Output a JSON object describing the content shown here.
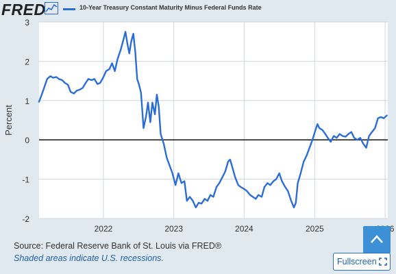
{
  "header": {
    "logo_text": "FRED",
    "logo_icon": "line-chart-icon",
    "legend_label": "10-Year Treasury Constant Maturity Minus Federal Funds Rate",
    "series_color": "#2b6dd6"
  },
  "footer": {
    "source": "Source: Federal Reserve Bank of St. Louis via FRED®",
    "recession_note": "Shaded areas indicate U.S. recessions.",
    "fullscreen_label": "Fullscreen",
    "fullscreen_icon": "fullscreen-icon",
    "scroll_top_icon": "chevron-up-icon"
  },
  "chart_data": {
    "type": "line",
    "ylabel": "Percent",
    "ylim": [
      -2,
      3
    ],
    "xlim": [
      "2021-02-01",
      "2026-01-15"
    ],
    "yticks": [
      "3",
      "2",
      "1",
      "0",
      "-1",
      "-2"
    ],
    "xticks": [
      {
        "label": "2022",
        "date": "2022-01-01"
      },
      {
        "label": "2023",
        "date": "2023-01-01"
      },
      {
        "label": "2024",
        "date": "2024-01-01"
      },
      {
        "label": "2025",
        "date": "2025-01-01"
      },
      {
        "label": "2026",
        "date": "2026-01-01"
      }
    ],
    "grid": true,
    "zero_line": true,
    "series": [
      {
        "name": "10-Year Treasury Constant Maturity Minus Federal Funds Rate",
        "color": "#2b6dd6",
        "points": [
          [
            "2021-02-01",
            0.97
          ],
          [
            "2021-02-15",
            1.15
          ],
          [
            "2021-03-01",
            1.35
          ],
          [
            "2021-03-15",
            1.55
          ],
          [
            "2021-04-01",
            1.62
          ],
          [
            "2021-04-15",
            1.58
          ],
          [
            "2021-05-01",
            1.6
          ],
          [
            "2021-05-15",
            1.55
          ],
          [
            "2021-06-01",
            1.52
          ],
          [
            "2021-06-15",
            1.45
          ],
          [
            "2021-07-01",
            1.4
          ],
          [
            "2021-07-15",
            1.22
          ],
          [
            "2021-08-01",
            1.18
          ],
          [
            "2021-08-15",
            1.25
          ],
          [
            "2021-09-01",
            1.28
          ],
          [
            "2021-09-15",
            1.32
          ],
          [
            "2021-10-01",
            1.45
          ],
          [
            "2021-10-15",
            1.55
          ],
          [
            "2021-11-01",
            1.52
          ],
          [
            "2021-11-15",
            1.55
          ],
          [
            "2021-12-01",
            1.42
          ],
          [
            "2021-12-15",
            1.45
          ],
          [
            "2022-01-01",
            1.6
          ],
          [
            "2022-01-15",
            1.75
          ],
          [
            "2022-02-01",
            1.8
          ],
          [
            "2022-02-15",
            1.95
          ],
          [
            "2022-03-01",
            1.75
          ],
          [
            "2022-03-15",
            2.05
          ],
          [
            "2022-04-01",
            2.3
          ],
          [
            "2022-04-15",
            2.55
          ],
          [
            "2022-04-25",
            2.75
          ],
          [
            "2022-05-05",
            2.45
          ],
          [
            "2022-05-15",
            2.2
          ],
          [
            "2022-05-25",
            2.5
          ],
          [
            "2022-06-05",
            2.7
          ],
          [
            "2022-06-15",
            2.25
          ],
          [
            "2022-06-25",
            1.55
          ],
          [
            "2022-07-05",
            1.4
          ],
          [
            "2022-07-15",
            1.2
          ],
          [
            "2022-07-28",
            0.3
          ],
          [
            "2022-08-10",
            0.6
          ],
          [
            "2022-08-20",
            0.95
          ],
          [
            "2022-09-01",
            0.45
          ],
          [
            "2022-09-12",
            0.95
          ],
          [
            "2022-09-25",
            0.65
          ],
          [
            "2022-10-05",
            1.15
          ],
          [
            "2022-10-15",
            0.85
          ],
          [
            "2022-10-25",
            0.15
          ],
          [
            "2022-11-10",
            -0.1
          ],
          [
            "2022-11-25",
            -0.45
          ],
          [
            "2022-12-10",
            -0.65
          ],
          [
            "2022-12-25",
            -0.85
          ],
          [
            "2023-01-10",
            -1.15
          ],
          [
            "2023-01-25",
            -0.85
          ],
          [
            "2023-02-10",
            -1.1
          ],
          [
            "2023-02-25",
            -1.05
          ],
          [
            "2023-03-10",
            -1.55
          ],
          [
            "2023-03-25",
            -1.45
          ],
          [
            "2023-04-10",
            -1.55
          ],
          [
            "2023-04-25",
            -1.72
          ],
          [
            "2023-05-10",
            -1.6
          ],
          [
            "2023-05-25",
            -1.62
          ],
          [
            "2023-06-10",
            -1.5
          ],
          [
            "2023-06-25",
            -1.55
          ],
          [
            "2023-07-10",
            -1.4
          ],
          [
            "2023-07-25",
            -1.45
          ],
          [
            "2023-08-10",
            -1.2
          ],
          [
            "2023-08-25",
            -1.1
          ],
          [
            "2023-09-10",
            -0.95
          ],
          [
            "2023-09-25",
            -0.8
          ],
          [
            "2023-10-10",
            -0.55
          ],
          [
            "2023-10-20",
            -0.5
          ],
          [
            "2023-11-01",
            -0.7
          ],
          [
            "2023-11-15",
            -0.95
          ],
          [
            "2023-12-01",
            -1.15
          ],
          [
            "2023-12-15",
            -1.2
          ],
          [
            "2024-01-01",
            -1.25
          ],
          [
            "2024-01-15",
            -1.3
          ],
          [
            "2024-02-01",
            -1.4
          ],
          [
            "2024-02-15",
            -1.45
          ],
          [
            "2024-03-01",
            -1.5
          ],
          [
            "2024-03-15",
            -1.4
          ],
          [
            "2024-04-01",
            -1.45
          ],
          [
            "2024-04-15",
            -1.2
          ],
          [
            "2024-05-01",
            -1.1
          ],
          [
            "2024-05-15",
            -1.15
          ],
          [
            "2024-06-01",
            -1.05
          ],
          [
            "2024-06-15",
            -1.0
          ],
          [
            "2024-07-01",
            -0.85
          ],
          [
            "2024-07-15",
            -1.05
          ],
          [
            "2024-08-01",
            -1.2
          ],
          [
            "2024-08-15",
            -1.3
          ],
          [
            "2024-09-01",
            -1.55
          ],
          [
            "2024-09-15",
            -1.72
          ],
          [
            "2024-09-25",
            -1.6
          ],
          [
            "2024-10-05",
            -1.1
          ],
          [
            "2024-10-20",
            -0.85
          ],
          [
            "2024-11-05",
            -0.55
          ],
          [
            "2024-11-20",
            -0.4
          ],
          [
            "2024-12-05",
            -0.2
          ],
          [
            "2024-12-20",
            0.0
          ],
          [
            "2025-01-05",
            0.25
          ],
          [
            "2025-01-15",
            0.4
          ],
          [
            "2025-01-25",
            0.3
          ],
          [
            "2025-02-10",
            0.25
          ],
          [
            "2025-02-25",
            0.15
          ],
          [
            "2025-03-10",
            0.05
          ],
          [
            "2025-03-25",
            -0.05
          ],
          [
            "2025-04-10",
            0.1
          ],
          [
            "2025-04-25",
            0.05
          ],
          [
            "2025-05-10",
            0.15
          ],
          [
            "2025-05-25",
            0.1
          ],
          [
            "2025-06-10",
            0.08
          ],
          [
            "2025-06-25",
            0.15
          ],
          [
            "2025-07-10",
            0.2
          ],
          [
            "2025-07-25",
            0.05
          ],
          [
            "2025-08-10",
            0.0
          ],
          [
            "2025-08-25",
            0.05
          ],
          [
            "2025-09-10",
            -0.1
          ],
          [
            "2025-09-25",
            -0.2
          ],
          [
            "2025-10-10",
            0.1
          ],
          [
            "2025-10-25",
            0.2
          ],
          [
            "2025-11-10",
            0.3
          ],
          [
            "2025-11-25",
            0.55
          ],
          [
            "2025-12-10",
            0.58
          ],
          [
            "2025-12-25",
            0.55
          ],
          [
            "2026-01-10",
            0.62
          ]
        ]
      }
    ]
  }
}
